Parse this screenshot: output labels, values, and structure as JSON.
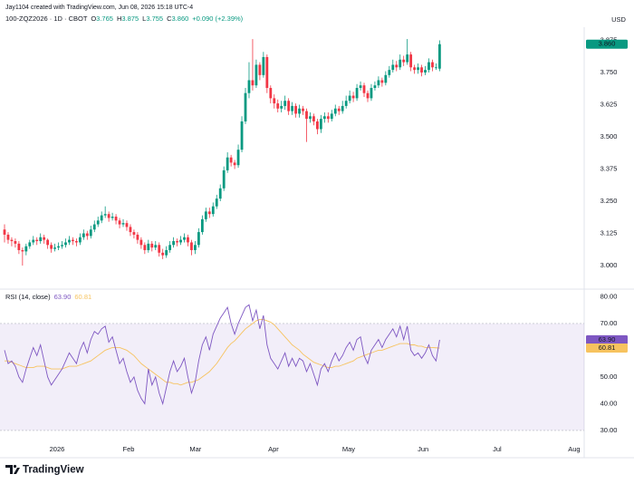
{
  "attribution": "Jay1104 created with TradingView.com, Jun 08, 2026 15:18 UTC-4",
  "logo": "TradingView",
  "chart_data": {
    "type": "candlestick",
    "title": "100-ZQZ2026 · 1D · CBOT",
    "ohlc_legend": [
      {
        "label": "O",
        "value": "3.765"
      },
      {
        "label": "H",
        "value": "3.875"
      },
      {
        "label": "L",
        "value": "3.755"
      },
      {
        "label": "C",
        "value": "3.860"
      }
    ],
    "change": "+0.090 (+2.39%)",
    "currency": "USD",
    "up_color": "#089981",
    "down_color": "#f23645",
    "open": [
      3.14,
      3.12,
      3.1,
      3.095,
      3.085,
      3.06,
      3.055,
      3.075,
      3.09,
      3.1,
      3.095,
      3.11,
      3.1,
      3.08,
      3.065,
      3.07,
      3.075,
      3.08,
      3.09,
      3.1,
      3.095,
      3.09,
      3.11,
      3.125,
      3.115,
      3.14,
      3.16,
      3.175,
      3.195,
      3.2,
      3.185,
      3.19,
      3.175,
      3.16,
      3.165,
      3.15,
      3.13,
      3.12,
      3.1,
      3.08,
      3.06,
      3.085,
      3.07,
      3.08,
      3.05,
      3.04,
      3.06,
      3.08,
      3.095,
      3.09,
      3.1,
      3.11,
      3.09,
      3.06,
      3.08,
      3.13,
      3.18,
      3.21,
      3.2,
      3.23,
      3.26,
      3.3,
      3.37,
      3.42,
      3.4,
      3.39,
      3.45,
      3.56,
      3.67,
      3.72,
      3.7,
      3.78,
      3.74,
      3.81,
      3.69,
      3.65,
      3.63,
      3.61,
      3.62,
      3.64,
      3.6,
      3.62,
      3.59,
      3.61,
      3.6,
      3.57,
      3.58,
      3.56,
      3.53,
      3.57,
      3.58,
      3.57,
      3.59,
      3.61,
      3.6,
      3.62,
      3.64,
      3.66,
      3.65,
      3.69,
      3.7,
      3.67,
      3.65,
      3.69,
      3.7,
      3.72,
      3.71,
      3.74,
      3.76,
      3.78,
      3.77,
      3.8,
      3.79,
      3.82,
      3.77,
      3.76,
      3.77,
      3.75,
      3.76,
      3.79,
      3.77,
      3.765
    ],
    "high": [
      3.16,
      3.13,
      3.11,
      3.105,
      3.095,
      3.07,
      3.085,
      3.1,
      3.115,
      3.11,
      3.125,
      3.12,
      3.105,
      3.09,
      3.085,
      3.09,
      3.095,
      3.105,
      3.115,
      3.11,
      3.105,
      3.125,
      3.14,
      3.135,
      3.155,
      3.175,
      3.19,
      3.21,
      3.23,
      3.21,
      3.205,
      3.2,
      3.185,
      3.18,
      3.175,
      3.16,
      3.14,
      3.13,
      3.11,
      3.09,
      3.1,
      3.095,
      3.095,
      3.09,
      3.065,
      3.075,
      3.095,
      3.11,
      3.105,
      3.115,
      3.125,
      3.12,
      3.1,
      3.095,
      3.145,
      3.195,
      3.225,
      3.225,
      3.245,
      3.275,
      3.315,
      3.385,
      3.44,
      3.43,
      3.41,
      3.47,
      3.58,
      3.69,
      3.79,
      3.88,
      3.8,
      3.79,
      3.83,
      3.82,
      3.7,
      3.665,
      3.645,
      3.64,
      3.66,
      3.65,
      3.635,
      3.63,
      3.625,
      3.62,
      3.61,
      3.595,
      3.59,
      3.57,
      3.585,
      3.595,
      3.595,
      3.605,
      3.625,
      3.62,
      3.64,
      3.66,
      3.68,
      3.675,
      3.705,
      3.715,
      3.71,
      3.68,
      3.705,
      3.715,
      3.735,
      3.73,
      3.755,
      3.775,
      3.8,
      3.795,
      3.82,
      3.815,
      3.88,
      3.83,
      3.78,
      3.785,
      3.78,
      3.775,
      3.805,
      3.8,
      3.785,
      3.875
    ],
    "low": [
      3.09,
      3.085,
      3.075,
      3.07,
      3.045,
      3.0,
      3.04,
      3.065,
      3.08,
      3.08,
      3.085,
      3.085,
      3.065,
      3.05,
      3.055,
      3.06,
      3.065,
      3.07,
      3.08,
      3.08,
      3.075,
      3.08,
      3.1,
      3.1,
      3.105,
      3.13,
      3.15,
      3.165,
      3.185,
      3.17,
      3.175,
      3.16,
      3.145,
      3.15,
      3.135,
      3.115,
      3.105,
      3.085,
      3.065,
      3.045,
      3.05,
      3.055,
      3.06,
      3.035,
      3.025,
      3.03,
      3.05,
      3.07,
      3.075,
      3.08,
      3.09,
      3.075,
      3.04,
      3.045,
      3.07,
      3.12,
      3.17,
      3.185,
      3.19,
      3.22,
      3.25,
      3.29,
      3.36,
      3.385,
      3.375,
      3.38,
      3.44,
      3.55,
      3.65,
      3.68,
      3.69,
      3.72,
      3.73,
      3.67,
      3.63,
      3.61,
      3.595,
      3.595,
      3.605,
      3.585,
      3.585,
      3.575,
      3.575,
      3.585,
      3.48,
      3.555,
      3.545,
      3.51,
      3.515,
      3.555,
      3.555,
      3.56,
      3.58,
      3.585,
      3.59,
      3.61,
      3.63,
      3.635,
      3.64,
      3.68,
      3.655,
      3.635,
      3.64,
      3.68,
      3.69,
      3.695,
      3.7,
      3.73,
      3.75,
      3.755,
      3.76,
      3.775,
      3.78,
      3.755,
      3.745,
      3.745,
      3.735,
      3.74,
      3.75,
      3.755,
      3.76,
      3.755
    ],
    "close": [
      3.12,
      3.1,
      3.095,
      3.085,
      3.06,
      3.055,
      3.075,
      3.09,
      3.1,
      3.095,
      3.11,
      3.1,
      3.08,
      3.065,
      3.07,
      3.075,
      3.08,
      3.09,
      3.1,
      3.095,
      3.09,
      3.11,
      3.125,
      3.115,
      3.14,
      3.16,
      3.175,
      3.195,
      3.2,
      3.185,
      3.19,
      3.175,
      3.16,
      3.165,
      3.15,
      3.13,
      3.12,
      3.1,
      3.08,
      3.06,
      3.085,
      3.07,
      3.08,
      3.05,
      3.04,
      3.06,
      3.08,
      3.095,
      3.09,
      3.1,
      3.11,
      3.09,
      3.06,
      3.08,
      3.13,
      3.18,
      3.21,
      3.2,
      3.23,
      3.26,
      3.3,
      3.37,
      3.42,
      3.4,
      3.39,
      3.45,
      3.56,
      3.67,
      3.72,
      3.7,
      3.78,
      3.74,
      3.81,
      3.69,
      3.65,
      3.63,
      3.61,
      3.62,
      3.64,
      3.6,
      3.62,
      3.59,
      3.61,
      3.6,
      3.57,
      3.58,
      3.56,
      3.53,
      3.57,
      3.58,
      3.57,
      3.59,
      3.61,
      3.6,
      3.62,
      3.64,
      3.66,
      3.65,
      3.69,
      3.7,
      3.67,
      3.65,
      3.69,
      3.7,
      3.72,
      3.71,
      3.74,
      3.76,
      3.78,
      3.77,
      3.8,
      3.79,
      3.82,
      3.77,
      3.76,
      3.77,
      3.75,
      3.76,
      3.79,
      3.77,
      3.77,
      3.86
    ],
    "xlim": [
      -1.26,
      161.2
    ],
    "xticks": [
      {
        "value": 14.6,
        "label": "2026"
      },
      {
        "value": 34.5,
        "label": "Feb"
      },
      {
        "value": 53.1,
        "label": "Mar"
      },
      {
        "value": 74.8,
        "label": "Apr"
      },
      {
        "value": 95.7,
        "label": "May"
      },
      {
        "value": 116.4,
        "label": "Jun"
      },
      {
        "value": 137,
        "label": "Jul"
      },
      {
        "value": 158.4,
        "label": "Aug"
      }
    ],
    "ylim": [
      2.912,
      3.926
    ],
    "yticks": [
      {
        "value": 3,
        "label": "3.000"
      },
      {
        "value": 3.125,
        "label": "3.125"
      },
      {
        "value": 3.25,
        "label": "3.250"
      },
      {
        "value": 3.375,
        "label": "3.375"
      },
      {
        "value": 3.5,
        "label": "3.500"
      },
      {
        "value": 3.625,
        "label": "3.625"
      },
      {
        "value": 3.75,
        "label": "3.750"
      },
      {
        "value": 3.875,
        "label": "3.875"
      }
    ],
    "last_price": {
      "value": 3.86,
      "label": "3.860"
    },
    "indicator": {
      "type": "line",
      "title": "RSI (14, close)",
      "ylim": [
        24.9,
        82.5
      ],
      "yticks": [
        {
          "value": 80,
          "label": "80.00"
        },
        {
          "value": 70,
          "label": "70.00"
        },
        {
          "value": 60,
          "label": "60.00"
        },
        {
          "value": 50,
          "label": "50.00"
        },
        {
          "value": 40,
          "label": "40.00"
        },
        {
          "value": 30,
          "label": "30.00"
        }
      ],
      "band": [
        30,
        70
      ],
      "band_color": "#7e57c2",
      "series": [
        {
          "color": "#7e57c2",
          "last_value": {
            "value": 63.9,
            "label": "63.90"
          },
          "values": [
            60,
            55,
            56,
            54,
            50,
            48,
            53,
            57,
            61,
            58,
            62,
            56,
            50,
            47,
            49,
            51,
            53,
            56,
            59,
            57,
            55,
            60,
            63,
            59,
            64,
            67,
            66,
            68,
            69,
            63,
            65,
            60,
            55,
            57,
            52,
            48,
            50,
            45,
            42,
            40,
            53,
            47,
            50,
            44,
            40,
            46,
            52,
            56,
            52,
            54,
            57,
            50,
            44,
            48,
            56,
            62,
            65,
            60,
            66,
            69,
            72,
            74,
            76,
            70,
            66,
            70,
            73,
            76,
            77,
            71,
            75,
            68,
            73,
            62,
            57,
            55,
            53,
            56,
            59,
            54,
            57,
            54,
            57,
            56,
            52,
            55,
            51,
            47,
            53,
            55,
            52,
            56,
            59,
            56,
            58,
            61,
            63,
            60,
            64,
            65,
            58,
            55,
            60,
            62,
            64,
            61,
            64,
            66,
            68,
            65,
            69,
            64,
            69,
            60,
            58,
            59,
            57,
            59,
            62,
            58,
            56,
            63.9
          ]
        },
        {
          "color": "#f7c35f",
          "last_value": {
            "value": 60.81,
            "label": "60.81"
          },
          "values": [
            56,
            56,
            55.5,
            55,
            54.5,
            54,
            53.5,
            53.5,
            53.5,
            54,
            54,
            54,
            53.5,
            53,
            53,
            53,
            53,
            53.5,
            54,
            54,
            54,
            54.5,
            55,
            55.5,
            56,
            57,
            58,
            59,
            60,
            60.5,
            61,
            61,
            61,
            60.5,
            60,
            59,
            58,
            56.5,
            55,
            54,
            53,
            52,
            51,
            50,
            49,
            48,
            48,
            47.5,
            47.5,
            47,
            47.5,
            48,
            48,
            48.5,
            49,
            50,
            51,
            52,
            53.5,
            55,
            57,
            59,
            61,
            62.5,
            63.5,
            65,
            66.5,
            68,
            69,
            70,
            71,
            71.5,
            71.5,
            71,
            70.5,
            69.5,
            68,
            66.5,
            65,
            63.5,
            62,
            61,
            60,
            58.5,
            57.5,
            56.5,
            55.5,
            55,
            54.5,
            54,
            53.5,
            53.5,
            54,
            54,
            54.5,
            55,
            55.5,
            56,
            57,
            57.5,
            58,
            58.5,
            59,
            59.5,
            60,
            60,
            60.5,
            61,
            61.5,
            62,
            62.5,
            62.5,
            62.5,
            62,
            62,
            61.5,
            61.5,
            61,
            61,
            61,
            60.9,
            60.81
          ]
        }
      ]
    }
  }
}
